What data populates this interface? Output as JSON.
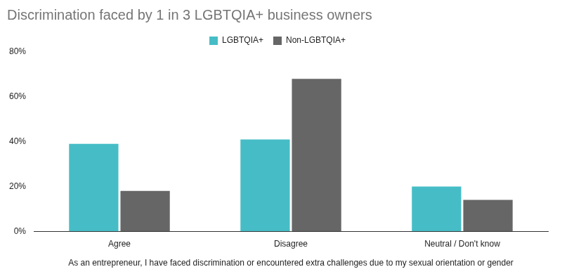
{
  "chart_data": {
    "type": "bar",
    "title": "Discrimination faced by 1 in 3 LGBTQIA+ business owners",
    "x_label": "As an entrepreneur, I have faced discrimination or encountered extra challenges due to my sexual orientation or gender",
    "categories": [
      "Agree",
      "Disagree",
      "Neutral / Don't know"
    ],
    "series": [
      {
        "name": "LGBTQIA+",
        "color": "#46bdc6",
        "values": [
          39,
          41,
          20
        ]
      },
      {
        "name": "Non-LGBTQIA+",
        "color": "#666666",
        "values": [
          18,
          68,
          14
        ]
      }
    ],
    "ylim": [
      0,
      80
    ],
    "yticks": [
      {
        "value": 0,
        "label": "0%"
      },
      {
        "value": 20,
        "label": "20%"
      },
      {
        "value": 40,
        "label": "40%"
      },
      {
        "value": 60,
        "label": "60%"
      },
      {
        "value": 80,
        "label": "80%"
      }
    ],
    "grid": false,
    "legend": "top"
  }
}
